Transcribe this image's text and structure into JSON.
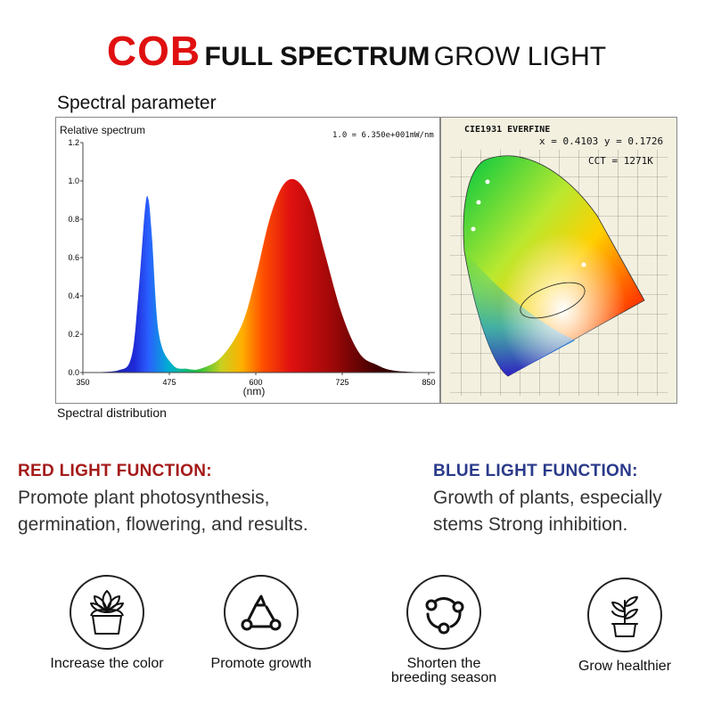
{
  "title": {
    "cob": "COB",
    "bold": "FULL SPECTRUM",
    "regular": "GROW LIGHT"
  },
  "spectral_heading": "Spectral parameter",
  "spectral_distribution": "Spectral distribution",
  "spectrum_chart": {
    "ylabel": "Relative spectrum",
    "xlabel": "(nm)",
    "note": "1.0 = 6.350e+001mW/nm",
    "x_ticks": [
      "350",
      "475",
      "600",
      "725",
      "850"
    ],
    "y_ticks": [
      "0.0",
      "0.2",
      "0.4",
      "0.6",
      "0.8",
      "1.0",
      "1.2"
    ]
  },
  "chart_data": {
    "type": "area",
    "xlabel": "(nm)",
    "ylabel": "Relative spectrum",
    "xlim": [
      350,
      850
    ],
    "ylim": [
      0,
      1.2
    ],
    "x": [
      350,
      400,
      420,
      430,
      440,
      445,
      450,
      460,
      480,
      500,
      520,
      550,
      580,
      600,
      620,
      640,
      660,
      680,
      700,
      725,
      750,
      775,
      800,
      850
    ],
    "values": [
      0.0,
      0.01,
      0.08,
      0.4,
      0.86,
      0.9,
      0.7,
      0.2,
      0.04,
      0.02,
      0.02,
      0.08,
      0.25,
      0.5,
      0.8,
      0.98,
      1.0,
      0.88,
      0.62,
      0.3,
      0.1,
      0.04,
      0.01,
      0.0
    ]
  },
  "cie": {
    "header": "CIE1931   EVERFINE",
    "coords": "x = 0.4103  y = 0.1726",
    "cct": "CCT = 1271K"
  },
  "red_function": {
    "heading": "RED LIGHT FUNCTION:",
    "line1": "Promote plant photosynthesis,",
    "line2": "germination, flowering, and results.",
    "color": "#a51a1a"
  },
  "blue_function": {
    "heading": "BLUE LIGHT FUNCTION:",
    "line1": "Growth of plants, especially",
    "line2": "stems Strong inhibition.",
    "color": "#2a3a8a"
  },
  "features": [
    {
      "icon": "succulent-pot-icon",
      "label": "Increase the color"
    },
    {
      "icon": "triangle-nodes-icon",
      "label": "Promote growth"
    },
    {
      "icon": "cycle-nodes-icon",
      "label_line1": "Shorten the",
      "label_line2": "breeding season"
    },
    {
      "icon": "sprout-pot-icon",
      "label": "Grow healthier"
    }
  ]
}
